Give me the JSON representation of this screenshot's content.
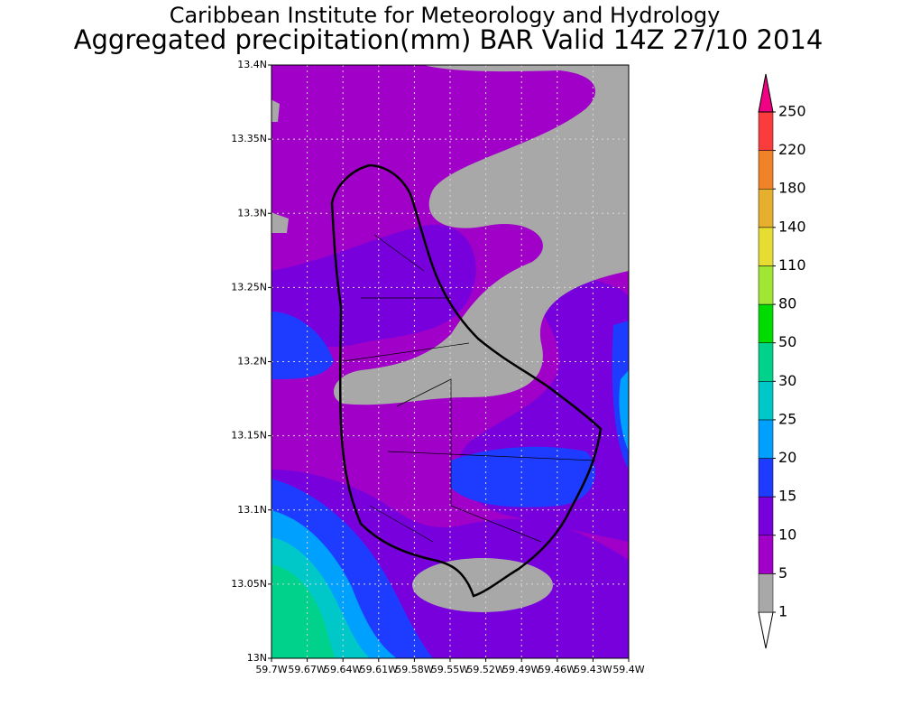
{
  "chart_data": {
    "type": "map",
    "title": "Caribbean Institute for Meteorology and Hydrology",
    "subtitle": "Aggregated precipitation(mm) BAR Valid 14Z 27/10 2014",
    "xlim": [
      -59.7,
      -59.4
    ],
    "ylim": [
      13,
      13.4
    ],
    "xticks": [
      {
        "value": -59.7,
        "label": "59.7W"
      },
      {
        "value": -59.67,
        "label": "59.67W"
      },
      {
        "value": -59.64,
        "label": "59.64W"
      },
      {
        "value": -59.61,
        "label": "59.61W"
      },
      {
        "value": -59.58,
        "label": "59.58W"
      },
      {
        "value": -59.55,
        "label": "59.55W"
      },
      {
        "value": -59.52,
        "label": "59.52W"
      },
      {
        "value": -59.49,
        "label": "59.49W"
      },
      {
        "value": -59.46,
        "label": "59.46W"
      },
      {
        "value": -59.43,
        "label": "59.43W"
      },
      {
        "value": -59.4,
        "label": "59.4W"
      }
    ],
    "yticks": [
      {
        "value": 13,
        "label": "13N"
      },
      {
        "value": 13.05,
        "label": "13.05N"
      },
      {
        "value": 13.1,
        "label": "13.1N"
      },
      {
        "value": 13.15,
        "label": "13.15N"
      },
      {
        "value": 13.2,
        "label": "13.2N"
      },
      {
        "value": 13.25,
        "label": "13.25N"
      },
      {
        "value": 13.3,
        "label": "13.3N"
      },
      {
        "value": 13.35,
        "label": "13.35N"
      },
      {
        "value": 13.4,
        "label": "13.4N"
      }
    ],
    "grid": true,
    "colorbar": {
      "levels": [
        1,
        5,
        10,
        15,
        20,
        25,
        30,
        50,
        80,
        110,
        140,
        180,
        220,
        250
      ],
      "colors": [
        "#ffffff",
        "#a8a8a8",
        "#a000c8",
        "#7800dc",
        "#1e3cff",
        "#00a0ff",
        "#00c8c8",
        "#00d28c",
        "#00dc00",
        "#a0e632",
        "#e6dc32",
        "#e6af2d",
        "#f08228",
        "#fa3c3c",
        "#f00082"
      ]
    }
  }
}
